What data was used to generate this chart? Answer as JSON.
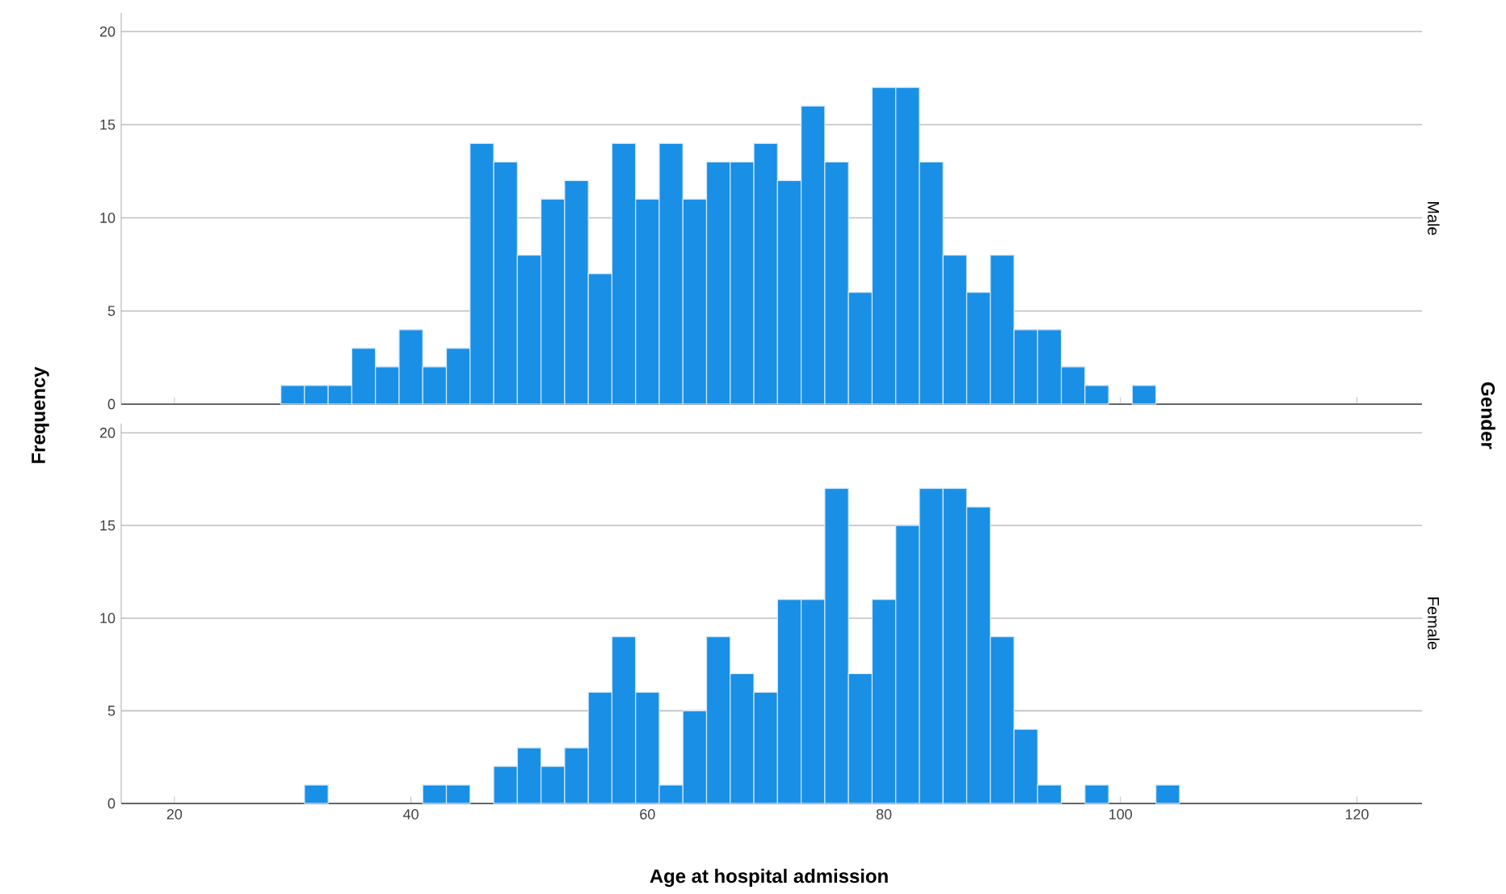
{
  "chart_data": [
    {
      "type": "histogram",
      "title": "Male",
      "ylabel": "Frequency",
      "y2label": "Gender",
      "color": "#1a8fe6",
      "bins": [
        29,
        31,
        33,
        35,
        37,
        39,
        41,
        43,
        45,
        47,
        49,
        51,
        53,
        55,
        57,
        59,
        61,
        63,
        65,
        67,
        69,
        71,
        73,
        75,
        77,
        79,
        81,
        83,
        85,
        87,
        89,
        91,
        93,
        95,
        97,
        99,
        101,
        103
      ],
      "values": [
        1,
        1,
        1,
        3,
        2,
        4,
        2,
        3,
        14,
        13,
        8,
        11,
        12,
        7,
        14,
        11,
        14,
        11,
        13,
        13,
        14,
        12,
        16,
        13,
        6,
        17,
        17,
        13,
        8,
        6,
        8,
        4,
        4,
        2,
        1,
        0,
        1
      ],
      "xlim": [
        15.5,
        125.5
      ],
      "ylim": [
        0,
        21
      ],
      "xticks": [
        20,
        40,
        60,
        80,
        100,
        120
      ],
      "yticks": [
        0,
        5,
        10,
        15,
        20
      ],
      "grid": "y",
      "tick_labels": "y"
    },
    {
      "type": "histogram",
      "title": "Female",
      "xlabel": "Age at hospital admission",
      "color": "#1a8fe6",
      "bins": [
        29,
        31,
        33,
        35,
        37,
        39,
        41,
        43,
        45,
        47,
        49,
        51,
        53,
        55,
        57,
        59,
        61,
        63,
        65,
        67,
        69,
        71,
        73,
        75,
        77,
        79,
        81,
        83,
        85,
        87,
        89,
        91,
        93,
        95,
        97,
        99,
        101,
        103,
        105
      ],
      "values": [
        0,
        1,
        0,
        0,
        0,
        0,
        1,
        1,
        0,
        2,
        3,
        2,
        3,
        6,
        9,
        6,
        1,
        5,
        9,
        7,
        6,
        11,
        11,
        17,
        7,
        11,
        15,
        17,
        17,
        16,
        9,
        4,
        1,
        0,
        1,
        0,
        0,
        1
      ],
      "xlim": [
        15.5,
        125.5
      ],
      "ylim": [
        0,
        20.5
      ],
      "xticks": [
        20,
        40,
        60,
        80,
        100,
        120
      ],
      "yticks": [
        0,
        5,
        10,
        15,
        20
      ],
      "grid": "y"
    }
  ]
}
